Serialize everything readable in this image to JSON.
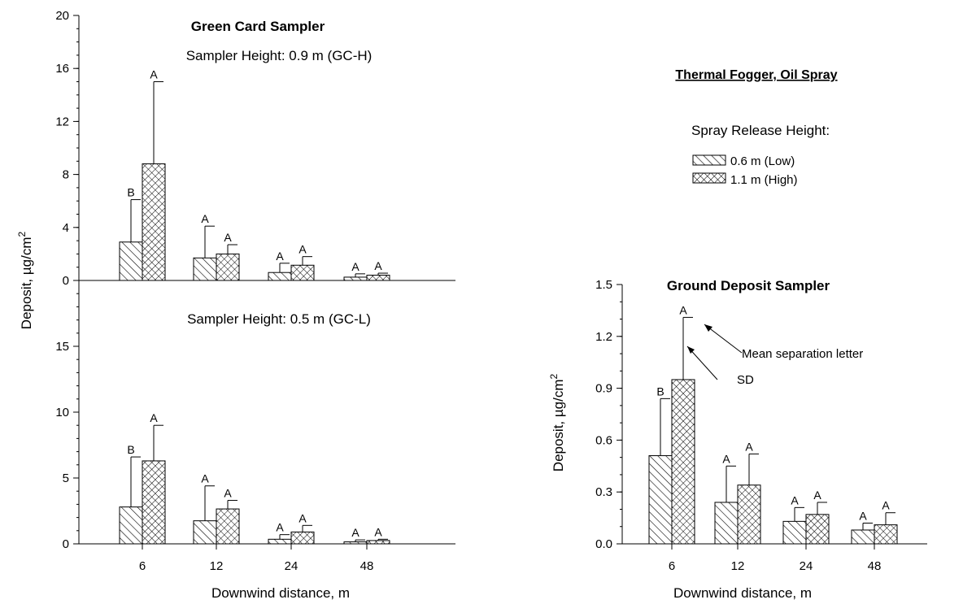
{
  "colors": {
    "ink": "#000000",
    "background": "#ffffff"
  },
  "legend": {
    "heading": "Thermal Fogger, Oil Spray",
    "subheading": "Spray Release Height:",
    "items": [
      {
        "label": "0.6 m (Low)",
        "pattern": "diagonal-hatch"
      },
      {
        "label": "1.1 m (High)",
        "pattern": "crosshatch"
      }
    ]
  },
  "left": {
    "title": "Green Card Sampler",
    "ylabel": "Deposit, µg/cm",
    "ylabel_sup": "2",
    "xlabel": "Downwind distance, m"
  },
  "annotations": {
    "mean_sep": "Mean separation letter",
    "sd": "SD"
  },
  "chart_data": [
    {
      "type": "bar",
      "panel": "left-top",
      "subtitle": "Sampler Height: 0.9 m (GC-H)",
      "categories": [
        "6",
        "12",
        "24",
        "48"
      ],
      "ylim": [
        0,
        20
      ],
      "yticks": [
        "0",
        "4",
        "8",
        "12",
        "16",
        "20"
      ],
      "series": [
        {
          "name": "0.6 m (Low)",
          "values": [
            2.9,
            1.7,
            0.6,
            0.25
          ],
          "sd": [
            3.2,
            2.4,
            0.7,
            0.25
          ],
          "letters": [
            "B",
            "A",
            "A",
            "A"
          ]
        },
        {
          "name": "1.1 m (High)",
          "values": [
            8.8,
            2.0,
            1.15,
            0.4
          ],
          "sd": [
            6.2,
            0.7,
            0.65,
            0.15
          ],
          "letters": [
            "A",
            "A",
            "A",
            "A"
          ]
        }
      ]
    },
    {
      "type": "bar",
      "panel": "left-bottom",
      "subtitle": "Sampler Height: 0.5 m (GC-L)",
      "categories": [
        "6",
        "12",
        "24",
        "48"
      ],
      "ylim": [
        0,
        20
      ],
      "yticks": [
        "0",
        "5",
        "10",
        "15"
      ],
      "series": [
        {
          "name": "0.6 m (Low)",
          "values": [
            2.8,
            1.75,
            0.35,
            0.15
          ],
          "sd": [
            3.8,
            2.65,
            0.35,
            0.15
          ],
          "letters": [
            "B",
            "A",
            "A",
            "A"
          ]
        },
        {
          "name": "1.1 m (High)",
          "values": [
            6.3,
            2.65,
            0.9,
            0.25
          ],
          "sd": [
            2.7,
            0.65,
            0.5,
            0.1
          ],
          "letters": [
            "A",
            "A",
            "A",
            "A"
          ]
        }
      ]
    },
    {
      "type": "bar",
      "panel": "right",
      "title": "Ground Deposit Sampler",
      "xlabel": "Downwind distance, m",
      "ylabel": "Deposit, µg/cm",
      "ylabel_sup": "2",
      "categories": [
        "6",
        "12",
        "24",
        "48"
      ],
      "ylim": [
        0,
        1.5
      ],
      "yticks": [
        "0.0",
        "0.3",
        "0.6",
        "0.9",
        "1.2",
        "1.5"
      ],
      "series": [
        {
          "name": "0.6 m (Low)",
          "values": [
            0.51,
            0.24,
            0.13,
            0.08
          ],
          "sd": [
            0.33,
            0.21,
            0.08,
            0.04
          ],
          "letters": [
            "B",
            "A",
            "A",
            "A"
          ]
        },
        {
          "name": "1.1 m (High)",
          "values": [
            0.95,
            0.34,
            0.17,
            0.11
          ],
          "sd": [
            0.36,
            0.18,
            0.07,
            0.07
          ],
          "letters": [
            "A",
            "A",
            "A",
            "A"
          ]
        }
      ]
    }
  ]
}
